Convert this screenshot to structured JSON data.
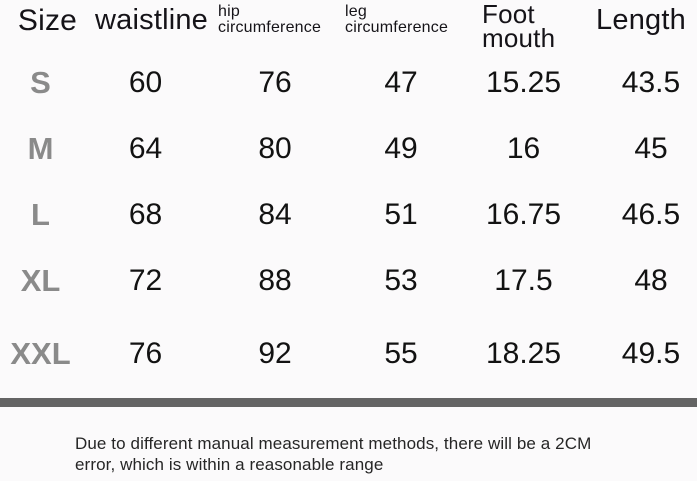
{
  "table": {
    "columns": [
      {
        "key": "size",
        "label": "Size"
      },
      {
        "key": "waistline",
        "label": "waistline"
      },
      {
        "key": "hip",
        "label": "hip circumference",
        "lines": [
          "hip",
          "circumference"
        ]
      },
      {
        "key": "leg",
        "label": "leg circumference",
        "lines": [
          "leg",
          "circumference"
        ]
      },
      {
        "key": "foot",
        "label": "Foot mouth",
        "lines": [
          "Foot",
          "mouth"
        ]
      },
      {
        "key": "length",
        "label": "Length"
      }
    ],
    "rows": [
      {
        "size": "S",
        "values": [
          "60",
          "76",
          "47",
          "15.25",
          "43.5"
        ]
      },
      {
        "size": "M",
        "values": [
          "64",
          "80",
          "49",
          "16",
          "45"
        ]
      },
      {
        "size": "L",
        "values": [
          "68",
          "84",
          "51",
          "16.75",
          "46.5"
        ]
      },
      {
        "size": "XL",
        "values": [
          "72",
          "88",
          "53",
          "17.5",
          "48"
        ]
      },
      {
        "size": "XXL",
        "values": [
          "76",
          "92",
          "55",
          "18.25",
          "49.5"
        ]
      }
    ]
  },
  "note": {
    "line1": "Due to different manual measurement methods, there will be a 2CM",
    "line2": "error, which is within a reasonable range"
  },
  "colors": {
    "background": "#fbfafb",
    "size_label_gray": "#8a8a8a",
    "value_text": "#121212",
    "divider_bar": "#646464",
    "note_text": "#262626"
  }
}
